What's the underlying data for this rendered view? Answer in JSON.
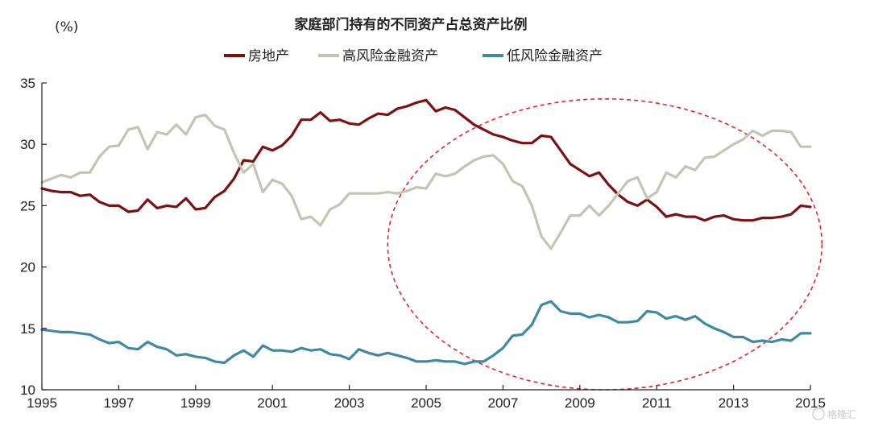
{
  "chart_data": {
    "type": "line",
    "title": "家庭部门持有的不同资产占总资产比例",
    "ylabel": "(%)",
    "xlabel": "",
    "xlim": [
      1995,
      2015
    ],
    "ylim": [
      10,
      35
    ],
    "yticks": [
      10,
      15,
      20,
      25,
      30,
      35
    ],
    "xticks": [
      1995,
      1997,
      1999,
      2001,
      2003,
      2005,
      2007,
      2009,
      2011,
      2013,
      2015
    ],
    "grid": false,
    "legend_position": "top",
    "series": [
      {
        "name": "房地产",
        "color": "#7b1113",
        "points": [
          [
            1995.0,
            26.4
          ],
          [
            1995.25,
            26.2
          ],
          [
            1995.5,
            26.1
          ],
          [
            1995.75,
            26.1
          ],
          [
            1996.0,
            25.8
          ],
          [
            1996.25,
            25.9
          ],
          [
            1996.5,
            25.3
          ],
          [
            1996.75,
            25.0
          ],
          [
            1997.0,
            25.0
          ],
          [
            1997.25,
            24.5
          ],
          [
            1997.5,
            24.6
          ],
          [
            1997.75,
            25.5
          ],
          [
            1998.0,
            24.8
          ],
          [
            1998.25,
            25.0
          ],
          [
            1998.5,
            24.9
          ],
          [
            1998.75,
            25.6
          ],
          [
            1999.0,
            24.7
          ],
          [
            1999.25,
            24.8
          ],
          [
            1999.5,
            25.7
          ],
          [
            1999.75,
            26.2
          ],
          [
            2000.0,
            27.2
          ],
          [
            2000.25,
            28.7
          ],
          [
            2000.5,
            28.6
          ],
          [
            2000.75,
            29.8
          ],
          [
            2001.0,
            29.5
          ],
          [
            2001.25,
            29.9
          ],
          [
            2001.5,
            30.7
          ],
          [
            2001.75,
            32.0
          ],
          [
            2002.0,
            32.0
          ],
          [
            2002.25,
            32.6
          ],
          [
            2002.5,
            31.9
          ],
          [
            2002.75,
            32.0
          ],
          [
            2003.0,
            31.7
          ],
          [
            2003.25,
            31.6
          ],
          [
            2003.5,
            32.1
          ],
          [
            2003.75,
            32.5
          ],
          [
            2004.0,
            32.4
          ],
          [
            2004.25,
            32.9
          ],
          [
            2004.5,
            33.1
          ],
          [
            2004.75,
            33.4
          ],
          [
            2005.0,
            33.6
          ],
          [
            2005.25,
            32.7
          ],
          [
            2005.5,
            33.0
          ],
          [
            2005.75,
            32.8
          ],
          [
            2006.0,
            32.2
          ],
          [
            2006.25,
            31.6
          ],
          [
            2006.5,
            31.2
          ],
          [
            2006.75,
            30.8
          ],
          [
            2007.0,
            30.6
          ],
          [
            2007.25,
            30.3
          ],
          [
            2007.5,
            30.1
          ],
          [
            2007.75,
            30.1
          ],
          [
            2008.0,
            30.7
          ],
          [
            2008.25,
            30.6
          ],
          [
            2008.5,
            29.5
          ],
          [
            2008.75,
            28.4
          ],
          [
            2009.0,
            27.9
          ],
          [
            2009.25,
            27.4
          ],
          [
            2009.5,
            27.7
          ],
          [
            2009.75,
            26.7
          ],
          [
            2010.0,
            25.9
          ],
          [
            2010.25,
            25.3
          ],
          [
            2010.5,
            25.0
          ],
          [
            2010.75,
            25.5
          ],
          [
            2011.0,
            24.9
          ],
          [
            2011.25,
            24.1
          ],
          [
            2011.5,
            24.3
          ],
          [
            2011.75,
            24.1
          ],
          [
            2012.0,
            24.1
          ],
          [
            2012.25,
            23.8
          ],
          [
            2012.5,
            24.1
          ],
          [
            2012.75,
            24.2
          ],
          [
            2013.0,
            23.9
          ],
          [
            2013.25,
            23.8
          ],
          [
            2013.5,
            23.8
          ],
          [
            2013.75,
            24.0
          ],
          [
            2014.0,
            24.0
          ],
          [
            2014.25,
            24.1
          ],
          [
            2014.5,
            24.3
          ],
          [
            2014.75,
            25.0
          ],
          [
            2015.0,
            24.9
          ]
        ]
      },
      {
        "name": "高风险金融资产",
        "color": "#c3c5b3",
        "points": [
          [
            1995.0,
            26.9
          ],
          [
            1995.25,
            27.2
          ],
          [
            1995.5,
            27.5
          ],
          [
            1995.75,
            27.3
          ],
          [
            1996.0,
            27.7
          ],
          [
            1996.25,
            27.7
          ],
          [
            1996.5,
            29.0
          ],
          [
            1996.75,
            29.8
          ],
          [
            1997.0,
            29.9
          ],
          [
            1997.25,
            31.2
          ],
          [
            1997.5,
            31.4
          ],
          [
            1997.75,
            29.6
          ],
          [
            1998.0,
            31.0
          ],
          [
            1998.25,
            30.8
          ],
          [
            1998.5,
            31.6
          ],
          [
            1998.75,
            30.8
          ],
          [
            1999.0,
            32.2
          ],
          [
            1999.25,
            32.4
          ],
          [
            1999.5,
            31.5
          ],
          [
            1999.75,
            31.2
          ],
          [
            2000.0,
            29.3
          ],
          [
            2000.25,
            27.7
          ],
          [
            2000.5,
            28.4
          ],
          [
            2000.75,
            26.1
          ],
          [
            2001.0,
            27.1
          ],
          [
            2001.25,
            26.8
          ],
          [
            2001.5,
            25.8
          ],
          [
            2001.75,
            23.9
          ],
          [
            2002.0,
            24.1
          ],
          [
            2002.25,
            23.4
          ],
          [
            2002.5,
            24.7
          ],
          [
            2002.75,
            25.1
          ],
          [
            2003.0,
            26.0
          ],
          [
            2003.25,
            26.0
          ],
          [
            2003.5,
            26.0
          ],
          [
            2003.75,
            26.0
          ],
          [
            2004.0,
            26.1
          ],
          [
            2004.25,
            26.0
          ],
          [
            2004.5,
            26.2
          ],
          [
            2004.75,
            26.5
          ],
          [
            2005.0,
            26.4
          ],
          [
            2005.25,
            27.6
          ],
          [
            2005.5,
            27.4
          ],
          [
            2005.75,
            27.6
          ],
          [
            2006.0,
            28.2
          ],
          [
            2006.25,
            28.7
          ],
          [
            2006.5,
            29.0
          ],
          [
            2006.75,
            29.1
          ],
          [
            2007.0,
            28.4
          ],
          [
            2007.25,
            27.0
          ],
          [
            2007.5,
            26.6
          ],
          [
            2007.75,
            25.0
          ],
          [
            2008.0,
            22.5
          ],
          [
            2008.25,
            21.5
          ],
          [
            2008.5,
            22.8
          ],
          [
            2008.75,
            24.2
          ],
          [
            2009.0,
            24.2
          ],
          [
            2009.25,
            25.0
          ],
          [
            2009.5,
            24.2
          ],
          [
            2009.75,
            25.0
          ],
          [
            2010.0,
            26.0
          ],
          [
            2010.25,
            27.0
          ],
          [
            2010.5,
            27.3
          ],
          [
            2010.75,
            25.6
          ],
          [
            2011.0,
            26.1
          ],
          [
            2011.25,
            27.7
          ],
          [
            2011.5,
            27.3
          ],
          [
            2011.75,
            28.2
          ],
          [
            2012.0,
            27.9
          ],
          [
            2012.25,
            28.9
          ],
          [
            2012.5,
            29.0
          ],
          [
            2012.75,
            29.5
          ],
          [
            2013.0,
            30.0
          ],
          [
            2013.25,
            30.4
          ],
          [
            2013.5,
            31.1
          ],
          [
            2013.75,
            30.7
          ],
          [
            2014.0,
            31.1
          ],
          [
            2014.25,
            31.1
          ],
          [
            2014.5,
            31.0
          ],
          [
            2014.75,
            29.8
          ],
          [
            2015.0,
            29.8
          ]
        ]
      },
      {
        "name": "低风险金融资产",
        "color": "#3f8aa2",
        "points": [
          [
            1995.0,
            14.9
          ],
          [
            1995.25,
            14.8
          ],
          [
            1995.5,
            14.7
          ],
          [
            1995.75,
            14.7
          ],
          [
            1996.0,
            14.6
          ],
          [
            1996.25,
            14.5
          ],
          [
            1996.5,
            14.1
          ],
          [
            1996.75,
            13.8
          ],
          [
            1997.0,
            13.9
          ],
          [
            1997.25,
            13.4
          ],
          [
            1997.5,
            13.3
          ],
          [
            1997.75,
            13.9
          ],
          [
            1998.0,
            13.5
          ],
          [
            1998.25,
            13.3
          ],
          [
            1998.5,
            12.8
          ],
          [
            1998.75,
            12.9
          ],
          [
            1999.0,
            12.7
          ],
          [
            1999.25,
            12.6
          ],
          [
            1999.5,
            12.3
          ],
          [
            1999.75,
            12.2
          ],
          [
            2000.0,
            12.8
          ],
          [
            2000.25,
            13.2
          ],
          [
            2000.5,
            12.7
          ],
          [
            2000.75,
            13.6
          ],
          [
            2001.0,
            13.2
          ],
          [
            2001.25,
            13.2
          ],
          [
            2001.5,
            13.1
          ],
          [
            2001.75,
            13.4
          ],
          [
            2002.0,
            13.2
          ],
          [
            2002.25,
            13.3
          ],
          [
            2002.5,
            12.9
          ],
          [
            2002.75,
            12.8
          ],
          [
            2003.0,
            12.5
          ],
          [
            2003.25,
            13.3
          ],
          [
            2003.5,
            13.0
          ],
          [
            2003.75,
            12.8
          ],
          [
            2004.0,
            13.0
          ],
          [
            2004.25,
            12.8
          ],
          [
            2004.5,
            12.6
          ],
          [
            2004.75,
            12.3
          ],
          [
            2005.0,
            12.3
          ],
          [
            2005.25,
            12.4
          ],
          [
            2005.5,
            12.3
          ],
          [
            2005.75,
            12.3
          ],
          [
            2006.0,
            12.1
          ],
          [
            2006.25,
            12.3
          ],
          [
            2006.5,
            12.3
          ],
          [
            2006.75,
            12.8
          ],
          [
            2007.0,
            13.4
          ],
          [
            2007.25,
            14.4
          ],
          [
            2007.5,
            14.5
          ],
          [
            2007.75,
            15.3
          ],
          [
            2008.0,
            16.9
          ],
          [
            2008.25,
            17.2
          ],
          [
            2008.5,
            16.4
          ],
          [
            2008.75,
            16.2
          ],
          [
            2009.0,
            16.2
          ],
          [
            2009.25,
            15.9
          ],
          [
            2009.5,
            16.1
          ],
          [
            2009.75,
            15.9
          ],
          [
            2010.0,
            15.5
          ],
          [
            2010.25,
            15.5
          ],
          [
            2010.5,
            15.6
          ],
          [
            2010.75,
            16.4
          ],
          [
            2011.0,
            16.3
          ],
          [
            2011.25,
            15.8
          ],
          [
            2011.5,
            16.0
          ],
          [
            2011.75,
            15.7
          ],
          [
            2012.0,
            16.0
          ],
          [
            2012.25,
            15.4
          ],
          [
            2012.5,
            15.0
          ],
          [
            2012.75,
            14.7
          ],
          [
            2013.0,
            14.3
          ],
          [
            2013.25,
            14.3
          ],
          [
            2013.5,
            13.9
          ],
          [
            2013.75,
            14.0
          ],
          [
            2014.0,
            13.9
          ],
          [
            2014.25,
            14.1
          ],
          [
            2014.5,
            14.0
          ],
          [
            2014.75,
            14.6
          ],
          [
            2015.0,
            14.6
          ]
        ]
      }
    ],
    "annotation": {
      "type": "dashed-ellipse",
      "color": "#e0242a",
      "x_range": [
        2004.0,
        2015.3
      ],
      "y_range": [
        10.0,
        33.7
      ]
    }
  },
  "watermark": {
    "text": "格隆汇"
  }
}
